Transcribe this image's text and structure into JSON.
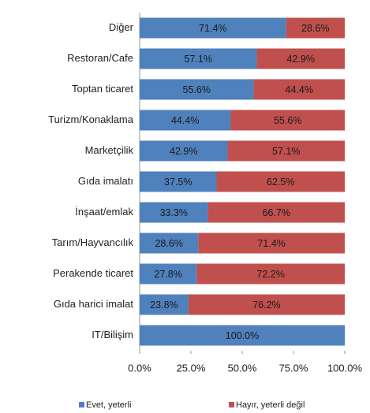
{
  "chart_data": {
    "type": "stacked_bar_horizontal",
    "categories": [
      "Diğer",
      "Restoran/Cafe",
      "Toptan ticaret",
      "Turizm/Konaklama",
      "Marketçilik",
      "Gıda imalatı",
      "İnşaat/emlak",
      "Tarım/Hayvancılık",
      "Perakende ticaret",
      "Gıda harici imalat",
      "IT/Bilişim"
    ],
    "series": [
      {
        "name": "Evet, yeterli",
        "color": "#4f81bd",
        "values": [
          71.4,
          57.1,
          55.6,
          44.4,
          42.9,
          37.5,
          33.3,
          28.6,
          27.8,
          23.8,
          100
        ],
        "value_labels": [
          "71.4%",
          "57.1%",
          "55.6%",
          "44.4%",
          "42.9%",
          "37.5%",
          "33.3%",
          "28.6%",
          "27.8%",
          "23.8%",
          "100.0%"
        ]
      },
      {
        "name": "Hayır, yeterli değil",
        "color": "#c0504d",
        "values": [
          28.6,
          42.9,
          44.4,
          55.6,
          57.1,
          62.5,
          66.7,
          71.4,
          72.2,
          76.2,
          0
        ],
        "value_labels": [
          "28.6%",
          "42.9%",
          "44.4%",
          "55.6%",
          "57.1%",
          "62.5%",
          "66.7%",
          "71.4%",
          "72.2%",
          "76.2%",
          null
        ]
      }
    ],
    "xlim": [
      0,
      100
    ],
    "xticks": [
      {
        "value": 0,
        "label": "0.0%"
      },
      {
        "value": 25,
        "label": "25.0%"
      },
      {
        "value": 50,
        "label": "50.0%"
      },
      {
        "value": 75,
        "label": "75.0%"
      },
      {
        "value": 100,
        "label": "100.0%"
      }
    ],
    "legend": "bottom"
  }
}
